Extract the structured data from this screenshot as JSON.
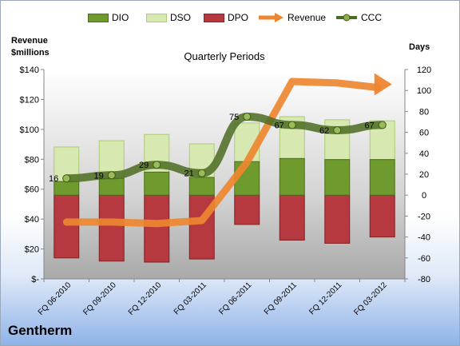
{
  "company": "Gentherm",
  "left_axis_title": [
    "Revenue",
    "$millions"
  ],
  "right_axis_title": "Days",
  "chart_data": {
    "type": "bar",
    "title": "Quarterly Periods",
    "categories": [
      "FQ 06-2010",
      "FQ 09-2010",
      "FQ 12-2010",
      "FQ 03-2011",
      "FQ 06-2011",
      "FQ 09-2011",
      "FQ 12-2011",
      "FQ 03-2012"
    ],
    "left_axis": {
      "ylim": [
        0,
        140
      ],
      "tick_labels": [
        "$-",
        "$20",
        "$40",
        "$60",
        "$80",
        "$100",
        "$120",
        "$140"
      ]
    },
    "right_axis": {
      "ylim": [
        -80,
        120
      ],
      "tick_labels": [
        "-80",
        "-60",
        "-40",
        "-20",
        "0",
        "20",
        "40",
        "60",
        "80",
        "100",
        "120"
      ]
    },
    "series": [
      {
        "name": "DIO",
        "axis": "days",
        "color": "#6e9a2e",
        "values": [
          13,
          16,
          22,
          17,
          32,
          35,
          34,
          34
        ]
      },
      {
        "name": "DSO",
        "axis": "days",
        "color": "#d7e8b0",
        "values": [
          33,
          36,
          36,
          32,
          37,
          40,
          38,
          37
        ]
      },
      {
        "name": "DPO",
        "axis": "days",
        "color": "#b5393e",
        "values": [
          -60,
          -63,
          -64,
          -61,
          -28,
          -43,
          -46,
          -40
        ]
      },
      {
        "name": "Revenue",
        "axis": "revenue",
        "color": "#ee8530",
        "values": [
          38,
          38,
          37,
          39,
          78,
          132,
          131,
          128
        ]
      },
      {
        "name": "CCC",
        "axis": "days",
        "color": "#4b6b21",
        "values": [
          16,
          19,
          29,
          21,
          75,
          67,
          62,
          67
        ],
        "labels": [
          "16",
          "19",
          "29",
          "21",
          "75",
          "67",
          "62",
          "67"
        ]
      }
    ],
    "grid": false,
    "legend": "top"
  }
}
